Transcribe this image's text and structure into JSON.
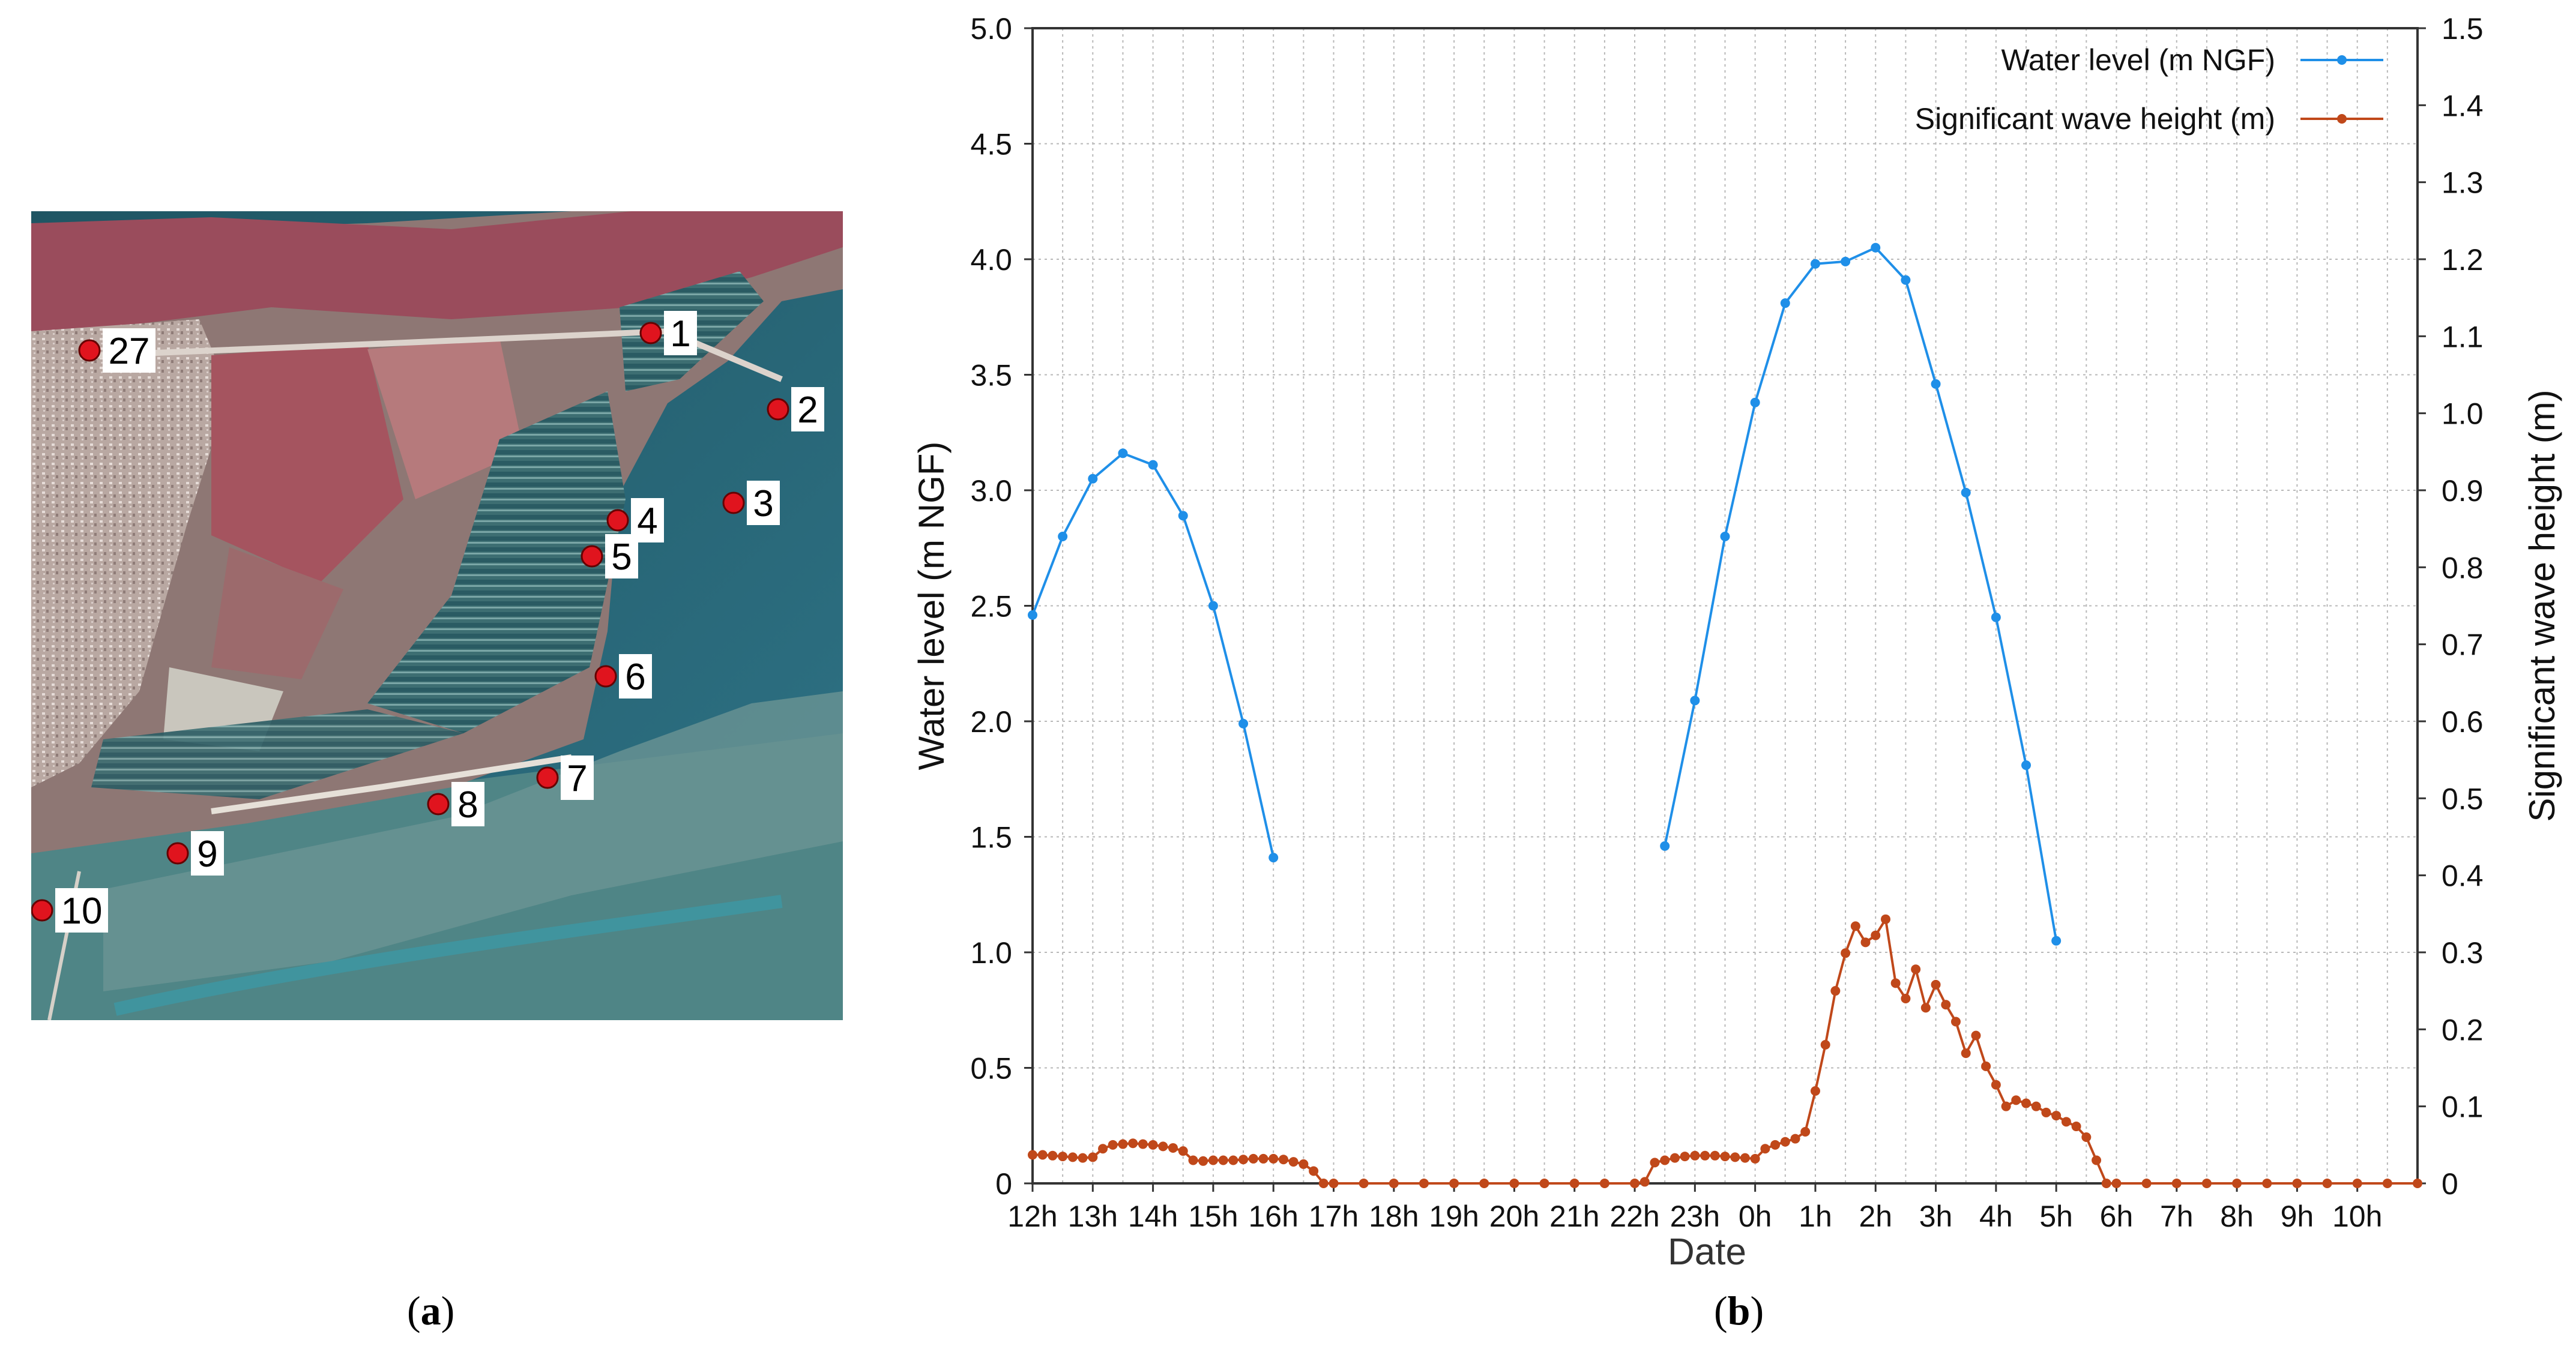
{
  "captions": {
    "a": "a",
    "b": "b"
  },
  "map": {
    "type": "satellite-image",
    "markers": [
      {
        "label": "27"
      },
      {
        "label": "1"
      },
      {
        "label": "2"
      },
      {
        "label": "3"
      },
      {
        "label": "4"
      },
      {
        "label": "5"
      },
      {
        "label": "6"
      },
      {
        "label": "7"
      },
      {
        "label": "8"
      },
      {
        "label": "9"
      },
      {
        "label": "10"
      }
    ],
    "colors": {
      "marker": "#e0141e",
      "sea": "#2f6f7e",
      "land_red": "#9a5a63",
      "tidal_flat": "#5e8c8e"
    }
  },
  "chart_data": {
    "type": "line",
    "xlabel": "Date",
    "ylabel_left": "Water level (m NGF)",
    "ylabel_right": "Significant wave height (m)",
    "ylim_left": [
      0,
      5.0
    ],
    "ylim_right": [
      0,
      1.5
    ],
    "yticks_left": [
      "0",
      "0.5",
      "1.0",
      "1.5",
      "2.0",
      "2.5",
      "3.0",
      "3.5",
      "4.0",
      "4.5",
      "5.0"
    ],
    "yticks_right": [
      "0",
      "0.1",
      "0.2",
      "0.3",
      "0.4",
      "0.5",
      "0.6",
      "0.7",
      "0.8",
      "0.9",
      "1.0",
      "1.1",
      "1.2",
      "1.3",
      "1.4",
      "1.5"
    ],
    "x_unit": "hours elapsed since 12h",
    "xlim": [
      0,
      23
    ],
    "xticks": [
      {
        "x": 0,
        "label": "12h"
      },
      {
        "x": 1,
        "label": "13h"
      },
      {
        "x": 2,
        "label": "14h"
      },
      {
        "x": 3,
        "label": "15h"
      },
      {
        "x": 4,
        "label": "16h"
      },
      {
        "x": 5,
        "label": "17h"
      },
      {
        "x": 6,
        "label": "18h"
      },
      {
        "x": 7,
        "label": "19h"
      },
      {
        "x": 8,
        "label": "20h"
      },
      {
        "x": 9,
        "label": "21h"
      },
      {
        "x": 10,
        "label": "22h"
      },
      {
        "x": 11,
        "label": "23h"
      },
      {
        "x": 12,
        "label": "0h"
      },
      {
        "x": 13,
        "label": "1h"
      },
      {
        "x": 14,
        "label": "2h"
      },
      {
        "x": 15,
        "label": "3h"
      },
      {
        "x": 16,
        "label": "4h"
      },
      {
        "x": 17,
        "label": "5h"
      },
      {
        "x": 18,
        "label": "6h"
      },
      {
        "x": 19,
        "label": "7h"
      },
      {
        "x": 20,
        "label": "8h"
      },
      {
        "x": 21,
        "label": "9h"
      },
      {
        "x": 22,
        "label": "10h"
      }
    ],
    "grid": true,
    "legend_position": "top-right",
    "series": [
      {
        "name": "Water level (m NGF)",
        "axis": "left",
        "color": "#1f8fe8",
        "segments": [
          [
            [
              0,
              2.46
            ],
            [
              0.5,
              2.8
            ],
            [
              1,
              3.05
            ],
            [
              1.5,
              3.16
            ],
            [
              2,
              3.11
            ],
            [
              2.5,
              2.89
            ],
            [
              3,
              2.5
            ],
            [
              3.5,
              1.99
            ],
            [
              4,
              1.41
            ]
          ],
          [
            [
              10.5,
              1.46
            ],
            [
              11,
              2.09
            ],
            [
              11.5,
              2.8
            ],
            [
              12,
              3.38
            ],
            [
              12.5,
              3.81
            ],
            [
              13,
              3.98
            ],
            [
              13.5,
              3.99
            ],
            [
              14,
              4.05
            ],
            [
              14.5,
              3.91
            ],
            [
              15,
              3.46
            ],
            [
              15.5,
              2.99
            ],
            [
              16,
              2.45
            ],
            [
              16.5,
              1.81
            ],
            [
              17,
              1.05
            ]
          ]
        ]
      },
      {
        "name": "Significant wave  height (m)",
        "axis": "right",
        "color": "#c0481a",
        "points": [
          [
            0,
            0.037
          ],
          [
            0.167,
            0.037
          ],
          [
            0.333,
            0.036
          ],
          [
            0.5,
            0.035
          ],
          [
            0.667,
            0.034
          ],
          [
            0.833,
            0.033
          ],
          [
            1,
            0.034
          ],
          [
            1.167,
            0.045
          ],
          [
            1.333,
            0.05
          ],
          [
            1.5,
            0.051
          ],
          [
            1.667,
            0.052
          ],
          [
            1.833,
            0.051
          ],
          [
            2,
            0.05
          ],
          [
            2.167,
            0.048
          ],
          [
            2.333,
            0.046
          ],
          [
            2.5,
            0.042
          ],
          [
            2.667,
            0.03
          ],
          [
            2.833,
            0.029
          ],
          [
            3,
            0.03
          ],
          [
            3.167,
            0.03
          ],
          [
            3.333,
            0.03
          ],
          [
            3.5,
            0.031
          ],
          [
            3.667,
            0.032
          ],
          [
            3.833,
            0.032
          ],
          [
            4,
            0.032
          ],
          [
            4.167,
            0.031
          ],
          [
            4.333,
            0.028
          ],
          [
            4.5,
            0.025
          ],
          [
            4.667,
            0.016
          ],
          [
            4.833,
            0
          ],
          [
            5,
            0
          ],
          [
            5.5,
            0
          ],
          [
            6,
            0
          ],
          [
            6.5,
            0
          ],
          [
            7,
            0
          ],
          [
            7.5,
            0
          ],
          [
            8,
            0
          ],
          [
            8.5,
            0
          ],
          [
            9,
            0
          ],
          [
            9.5,
            0
          ],
          [
            10,
            0
          ],
          [
            10.167,
            0.002
          ],
          [
            10.333,
            0.027
          ],
          [
            10.5,
            0.03
          ],
          [
            10.667,
            0.033
          ],
          [
            10.833,
            0.035
          ],
          [
            11,
            0.036
          ],
          [
            11.167,
            0.036
          ],
          [
            11.333,
            0.036
          ],
          [
            11.5,
            0.035
          ],
          [
            11.667,
            0.034
          ],
          [
            11.833,
            0.033
          ],
          [
            12,
            0.032
          ],
          [
            12.167,
            0.045
          ],
          [
            12.333,
            0.05
          ],
          [
            12.5,
            0.054
          ],
          [
            12.667,
            0.058
          ],
          [
            12.833,
            0.067
          ],
          [
            13,
            0.12
          ],
          [
            13.167,
            0.18
          ],
          [
            13.333,
            0.25
          ],
          [
            13.5,
            0.299
          ],
          [
            13.667,
            0.334
          ],
          [
            13.833,
            0.313
          ],
          [
            14,
            0.322
          ],
          [
            14.167,
            0.343
          ],
          [
            14.333,
            0.26
          ],
          [
            14.5,
            0.24
          ],
          [
            14.667,
            0.278
          ],
          [
            14.833,
            0.228
          ],
          [
            15,
            0.258
          ],
          [
            15.167,
            0.232
          ],
          [
            15.333,
            0.21
          ],
          [
            15.5,
            0.169
          ],
          [
            15.667,
            0.192
          ],
          [
            15.833,
            0.152
          ],
          [
            16,
            0.128
          ],
          [
            16.167,
            0.1
          ],
          [
            16.333,
            0.108
          ],
          [
            16.5,
            0.104
          ],
          [
            16.667,
            0.1
          ],
          [
            16.833,
            0.092
          ],
          [
            17,
            0.088
          ],
          [
            17.167,
            0.08
          ],
          [
            17.333,
            0.074
          ],
          [
            17.5,
            0.06
          ],
          [
            17.667,
            0.03
          ],
          [
            17.833,
            0
          ],
          [
            18,
            0
          ],
          [
            18.5,
            0
          ],
          [
            19,
            0
          ],
          [
            19.5,
            0
          ],
          [
            20,
            0
          ],
          [
            20.5,
            0
          ],
          [
            21,
            0
          ],
          [
            21.5,
            0
          ],
          [
            22,
            0
          ],
          [
            22.5,
            0
          ],
          [
            23,
            0
          ]
        ]
      }
    ]
  }
}
